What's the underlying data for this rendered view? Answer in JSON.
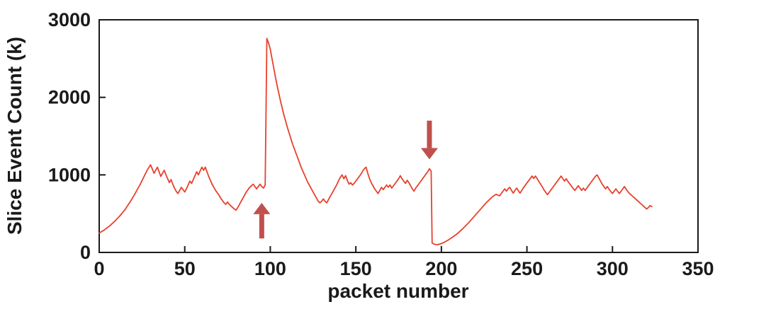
{
  "figure": {
    "background": "#ffffff",
    "axis_color": "#1a1a1a",
    "line_color": "#e8402c",
    "arrow_color": "#c0504d"
  },
  "chart_data": {
    "type": "line",
    "title": "",
    "xlabel": "packet number",
    "ylabel": "Slice Event Count (k)",
    "xlim": [
      0,
      350
    ],
    "ylim": [
      0,
      3000
    ],
    "xticks": [
      0,
      50,
      100,
      150,
      200,
      250,
      300,
      350
    ],
    "yticks": [
      0,
      1000,
      2000,
      3000
    ],
    "grid": false,
    "legend": "none",
    "series": [
      {
        "name": "slice-event-count",
        "color": "#e8402c",
        "points": [
          [
            0,
            250
          ],
          [
            3,
            290
          ],
          [
            6,
            340
          ],
          [
            9,
            400
          ],
          [
            12,
            470
          ],
          [
            15,
            550
          ],
          [
            18,
            650
          ],
          [
            21,
            760
          ],
          [
            24,
            880
          ],
          [
            26,
            970
          ],
          [
            28,
            1060
          ],
          [
            30,
            1130
          ],
          [
            31,
            1080
          ],
          [
            32,
            1020
          ],
          [
            33,
            1060
          ],
          [
            34,
            1100
          ],
          [
            35,
            1040
          ],
          [
            36,
            980
          ],
          [
            37,
            1020
          ],
          [
            38,
            1060
          ],
          [
            39,
            1000
          ],
          [
            40,
            950
          ],
          [
            41,
            900
          ],
          [
            42,
            940
          ],
          [
            43,
            880
          ],
          [
            44,
            830
          ],
          [
            45,
            790
          ],
          [
            46,
            760
          ],
          [
            47,
            800
          ],
          [
            48,
            840
          ],
          [
            49,
            810
          ],
          [
            50,
            780
          ],
          [
            51,
            820
          ],
          [
            52,
            870
          ],
          [
            53,
            920
          ],
          [
            54,
            890
          ],
          [
            55,
            940
          ],
          [
            56,
            990
          ],
          [
            57,
            1040
          ],
          [
            58,
            1000
          ],
          [
            59,
            1050
          ],
          [
            60,
            1100
          ],
          [
            61,
            1060
          ],
          [
            62,
            1100
          ],
          [
            63,
            1040
          ],
          [
            64,
            980
          ],
          [
            65,
            930
          ],
          [
            66,
            880
          ],
          [
            67,
            840
          ],
          [
            68,
            800
          ],
          [
            69,
            770
          ],
          [
            70,
            740
          ],
          [
            71,
            700
          ],
          [
            72,
            670
          ],
          [
            73,
            640
          ],
          [
            74,
            620
          ],
          [
            75,
            650
          ],
          [
            76,
            620
          ],
          [
            77,
            600
          ],
          [
            78,
            580
          ],
          [
            79,
            560
          ],
          [
            80,
            545
          ],
          [
            81,
            580
          ],
          [
            82,
            620
          ],
          [
            83,
            660
          ],
          [
            84,
            700
          ],
          [
            85,
            740
          ],
          [
            86,
            780
          ],
          [
            87,
            810
          ],
          [
            88,
            840
          ],
          [
            89,
            860
          ],
          [
            90,
            880
          ],
          [
            91,
            850
          ],
          [
            92,
            820
          ],
          [
            93,
            850
          ],
          [
            94,
            880
          ],
          [
            95,
            850
          ],
          [
            96,
            830
          ],
          [
            97,
            870
          ],
          [
            98,
            2760
          ],
          [
            99,
            2700
          ],
          [
            100,
            2620
          ],
          [
            101,
            2500
          ],
          [
            102,
            2380
          ],
          [
            103,
            2260
          ],
          [
            104,
            2150
          ],
          [
            105,
            2050
          ],
          [
            106,
            1950
          ],
          [
            107,
            1860
          ],
          [
            108,
            1770
          ],
          [
            109,
            1690
          ],
          [
            110,
            1610
          ],
          [
            111,
            1540
          ],
          [
            112,
            1470
          ],
          [
            113,
            1400
          ],
          [
            114,
            1340
          ],
          [
            115,
            1280
          ],
          [
            116,
            1220
          ],
          [
            117,
            1160
          ],
          [
            118,
            1100
          ],
          [
            119,
            1050
          ],
          [
            120,
            1000
          ],
          [
            121,
            950
          ],
          [
            122,
            900
          ],
          [
            123,
            860
          ],
          [
            124,
            820
          ],
          [
            125,
            780
          ],
          [
            126,
            740
          ],
          [
            127,
            700
          ],
          [
            128,
            660
          ],
          [
            129,
            640
          ],
          [
            130,
            660
          ],
          [
            131,
            690
          ],
          [
            132,
            660
          ],
          [
            133,
            640
          ],
          [
            134,
            680
          ],
          [
            135,
            720
          ],
          [
            136,
            760
          ],
          [
            137,
            800
          ],
          [
            138,
            840
          ],
          [
            139,
            880
          ],
          [
            140,
            930
          ],
          [
            141,
            970
          ],
          [
            142,
            1000
          ],
          [
            143,
            950
          ],
          [
            144,
            990
          ],
          [
            145,
            930
          ],
          [
            146,
            880
          ],
          [
            147,
            900
          ],
          [
            148,
            870
          ],
          [
            149,
            890
          ],
          [
            150,
            920
          ],
          [
            151,
            950
          ],
          [
            152,
            980
          ],
          [
            153,
            1010
          ],
          [
            154,
            1050
          ],
          [
            155,
            1080
          ],
          [
            156,
            1100
          ],
          [
            157,
            1020
          ],
          [
            158,
            950
          ],
          [
            159,
            900
          ],
          [
            160,
            860
          ],
          [
            161,
            820
          ],
          [
            162,
            790
          ],
          [
            163,
            760
          ],
          [
            164,
            800
          ],
          [
            165,
            840
          ],
          [
            166,
            810
          ],
          [
            167,
            840
          ],
          [
            168,
            870
          ],
          [
            169,
            840
          ],
          [
            170,
            870
          ],
          [
            171,
            830
          ],
          [
            172,
            860
          ],
          [
            173,
            890
          ],
          [
            174,
            920
          ],
          [
            175,
            950
          ],
          [
            176,
            990
          ],
          [
            177,
            950
          ],
          [
            178,
            920
          ],
          [
            179,
            890
          ],
          [
            180,
            930
          ],
          [
            181,
            900
          ],
          [
            182,
            860
          ],
          [
            183,
            820
          ],
          [
            184,
            790
          ],
          [
            185,
            830
          ],
          [
            186,
            860
          ],
          [
            187,
            890
          ],
          [
            188,
            920
          ],
          [
            189,
            950
          ],
          [
            190,
            980
          ],
          [
            191,
            1010
          ],
          [
            192,
            1040
          ],
          [
            193,
            1080
          ],
          [
            194,
            1050
          ],
          [
            194.6,
            120
          ],
          [
            196,
            105
          ],
          [
            198,
            100
          ],
          [
            200,
            115
          ],
          [
            202,
            135
          ],
          [
            204,
            160
          ],
          [
            206,
            190
          ],
          [
            208,
            220
          ],
          [
            210,
            255
          ],
          [
            212,
            295
          ],
          [
            214,
            340
          ],
          [
            216,
            385
          ],
          [
            218,
            435
          ],
          [
            220,
            485
          ],
          [
            222,
            535
          ],
          [
            224,
            585
          ],
          [
            226,
            635
          ],
          [
            228,
            680
          ],
          [
            230,
            720
          ],
          [
            232,
            750
          ],
          [
            234,
            730
          ],
          [
            235,
            760
          ],
          [
            236,
            790
          ],
          [
            237,
            820
          ],
          [
            238,
            790
          ],
          [
            239,
            820
          ],
          [
            240,
            840
          ],
          [
            241,
            800
          ],
          [
            242,
            765
          ],
          [
            243,
            800
          ],
          [
            244,
            830
          ],
          [
            245,
            795
          ],
          [
            246,
            765
          ],
          [
            247,
            800
          ],
          [
            248,
            835
          ],
          [
            249,
            865
          ],
          [
            250,
            895
          ],
          [
            251,
            925
          ],
          [
            252,
            955
          ],
          [
            253,
            985
          ],
          [
            254,
            955
          ],
          [
            255,
            985
          ],
          [
            256,
            950
          ],
          [
            257,
            915
          ],
          [
            258,
            880
          ],
          [
            259,
            845
          ],
          [
            260,
            805
          ],
          [
            261,
            775
          ],
          [
            262,
            745
          ],
          [
            263,
            775
          ],
          [
            264,
            805
          ],
          [
            265,
            835
          ],
          [
            266,
            865
          ],
          [
            267,
            895
          ],
          [
            268,
            925
          ],
          [
            269,
            955
          ],
          [
            270,
            985
          ],
          [
            271,
            950
          ],
          [
            272,
            920
          ],
          [
            273,
            950
          ],
          [
            274,
            915
          ],
          [
            275,
            885
          ],
          [
            276,
            855
          ],
          [
            277,
            825
          ],
          [
            278,
            800
          ],
          [
            279,
            830
          ],
          [
            280,
            860
          ],
          [
            281,
            830
          ],
          [
            282,
            800
          ],
          [
            283,
            830
          ],
          [
            284,
            800
          ],
          [
            285,
            830
          ],
          [
            286,
            860
          ],
          [
            287,
            890
          ],
          [
            288,
            920
          ],
          [
            289,
            950
          ],
          [
            290,
            980
          ],
          [
            291,
            1000
          ],
          [
            292,
            960
          ],
          [
            293,
            920
          ],
          [
            294,
            880
          ],
          [
            295,
            850
          ],
          [
            296,
            820
          ],
          [
            297,
            850
          ],
          [
            298,
            815
          ],
          [
            299,
            785
          ],
          [
            300,
            760
          ],
          [
            301,
            790
          ],
          [
            302,
            820
          ],
          [
            303,
            790
          ],
          [
            304,
            760
          ],
          [
            305,
            790
          ],
          [
            306,
            820
          ],
          [
            307,
            850
          ],
          [
            308,
            815
          ],
          [
            309,
            785
          ],
          [
            310,
            760
          ],
          [
            311,
            740
          ],
          [
            312,
            720
          ],
          [
            313,
            700
          ],
          [
            314,
            680
          ],
          [
            315,
            660
          ],
          [
            316,
            640
          ],
          [
            317,
            620
          ],
          [
            318,
            600
          ],
          [
            319,
            580
          ],
          [
            320,
            560
          ],
          [
            321,
            580
          ],
          [
            322,
            605
          ],
          [
            323,
            590
          ]
        ]
      }
    ],
    "annotations": [
      {
        "type": "arrow",
        "name": "up-arrow",
        "direction": "up",
        "x": 95,
        "y_tail": 180,
        "y_tip": 640,
        "color": "#c0504d"
      },
      {
        "type": "arrow",
        "name": "down-arrow",
        "direction": "down",
        "x": 193,
        "y_tail": 1700,
        "y_tip": 1200,
        "color": "#c0504d"
      }
    ]
  }
}
